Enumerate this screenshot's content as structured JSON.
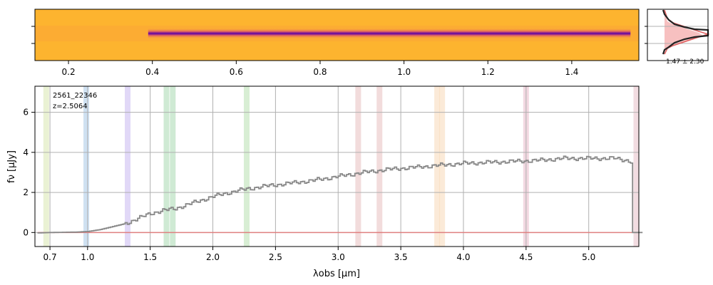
{
  "chart_data": [
    {
      "panel": "2d-spectrum",
      "type": "heatmap",
      "colormap": "plasma",
      "x_ticks": [
        "0.2",
        "0.4",
        "0.6",
        "0.8",
        "1.0",
        "1.2",
        "1.4"
      ],
      "x_tick_values": [
        0.2,
        0.4,
        0.6,
        0.8,
        1.0,
        1.2,
        1.4
      ],
      "x_range": [
        0.12,
        1.56
      ],
      "trace_x_range": [
        0.39,
        1.54
      ],
      "colors": {
        "background": "#fdb42f",
        "trace_core": "#5c01a6",
        "trace_edge": "#cc4778"
      }
    },
    {
      "panel": "trace-profile",
      "type": "line",
      "annotation": "1.47 ± 2.30",
      "colors": {
        "profile": "#222222",
        "model": "#e06060",
        "fill": "#f7c0c0"
      }
    },
    {
      "panel": "1d-spectrum",
      "type": "line",
      "xlabel": "λobs [μm]",
      "ylabel": "fν [μJy]",
      "annotation": [
        "2561_22346",
        "z=2.5064"
      ],
      "x_ticks": [
        "0.7",
        "1.0",
        "1.5",
        "2.0",
        "2.5",
        "3.0",
        "3.5",
        "4.0",
        "4.5",
        "5.0"
      ],
      "x_tick_values": [
        0.7,
        1.0,
        1.5,
        2.0,
        2.5,
        3.0,
        3.5,
        4.0,
        4.5,
        5.0
      ],
      "x_range": [
        0.58,
        5.4
      ],
      "y_ticks": [
        "0",
        "2",
        "4",
        "6"
      ],
      "y_tick_values": [
        0,
        2,
        4,
        6
      ],
      "ylim": [
        -0.7,
        7.3
      ],
      "grid": true,
      "series": [
        {
          "color": "#888888",
          "x": [
            0.6,
            0.7,
            0.8,
            0.9,
            1.0,
            1.1,
            1.2,
            1.3,
            1.4,
            1.5,
            1.6,
            1.7,
            1.8,
            2.0,
            2.2,
            2.4,
            2.6,
            2.8,
            3.0,
            3.2,
            3.4,
            3.6,
            3.8,
            4.0,
            4.2,
            4.4,
            4.6,
            4.8,
            5.0,
            5.2,
            5.3,
            5.35
          ],
          "y": [
            -0.02,
            0.0,
            0.01,
            0.02,
            0.05,
            0.15,
            0.3,
            0.45,
            0.7,
            0.95,
            1.1,
            1.2,
            1.4,
            1.8,
            2.1,
            2.3,
            2.45,
            2.6,
            2.8,
            3.0,
            3.15,
            3.25,
            3.35,
            3.45,
            3.5,
            3.55,
            3.6,
            3.7,
            3.7,
            3.7,
            3.6,
            3.5
          ]
        }
      ],
      "error_line": {
        "color": "#e08080",
        "value": 0.0
      },
      "line_bands": [
        {
          "center": 0.67,
          "color": "#d8e8b0"
        },
        {
          "center": 0.99,
          "color": "#a8c8e8"
        },
        {
          "center": 1.32,
          "color": "#c8b8f0"
        },
        {
          "center": 1.63,
          "color": "#a8d8b0"
        },
        {
          "center": 1.68,
          "color": "#a8d8b0"
        },
        {
          "center": 2.27,
          "color": "#b8e0b0"
        },
        {
          "center": 3.16,
          "color": "#e8c0c0"
        },
        {
          "center": 3.33,
          "color": "#e8c0c0"
        },
        {
          "center": 3.79,
          "color": "#f8d8b8"
        },
        {
          "center": 3.83,
          "color": "#f8d8b8"
        },
        {
          "center": 4.5,
          "color": "#e8b8c8"
        },
        {
          "center": 5.38,
          "color": "#e8c0c8"
        }
      ]
    }
  ]
}
